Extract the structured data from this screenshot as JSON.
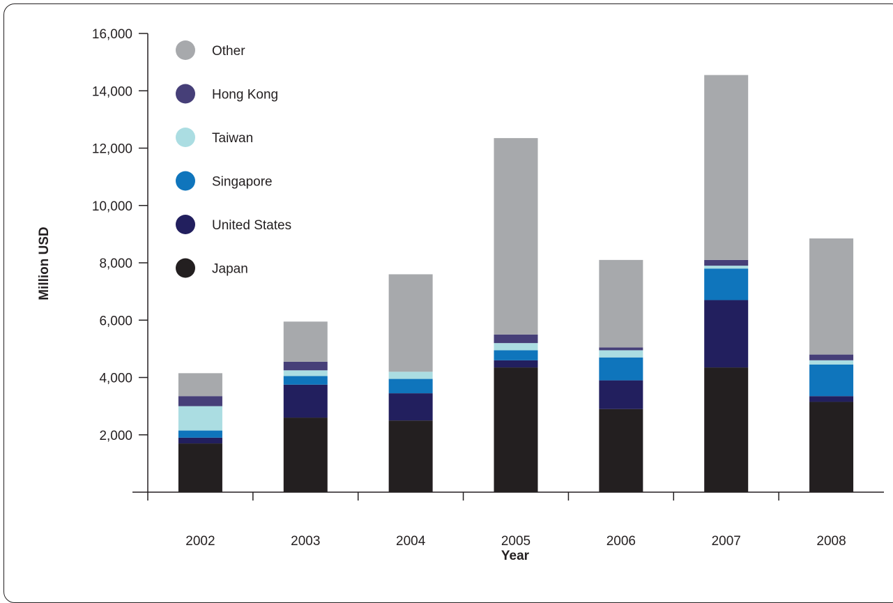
{
  "chart_data": {
    "type": "bar",
    "stacked": true,
    "categories": [
      "2002",
      "2003",
      "2004",
      "2005",
      "2006",
      "2007",
      "2008"
    ],
    "xlabel": "Year",
    "ylabel": "Million USD",
    "ylim": [
      0,
      16000
    ],
    "yticks": [
      2000,
      4000,
      6000,
      8000,
      10000,
      12000,
      14000,
      16000
    ],
    "ytick_labels": [
      "2,000",
      "4,000",
      "6,000",
      "8,000",
      "10,000",
      "12,000",
      "14,000",
      "16,000"
    ],
    "grid": false,
    "legend_position": "top-left",
    "series": [
      {
        "name": "Japan",
        "color": "#231f20",
        "values": [
          1700,
          2600,
          2500,
          4350,
          2900,
          4350,
          3150
        ]
      },
      {
        "name": "United States",
        "color": "#221f5e",
        "values": [
          200,
          1150,
          950,
          250,
          1000,
          2350,
          200
        ]
      },
      {
        "name": "Singapore",
        "color": "#0f75bc",
        "values": [
          250,
          300,
          500,
          350,
          800,
          1100,
          1100
        ]
      },
      {
        "name": "Taiwan",
        "color": "#abdde2",
        "values": [
          850,
          200,
          250,
          250,
          250,
          100,
          150
        ]
      },
      {
        "name": "Hong Kong",
        "color": "#463f78",
        "values": [
          350,
          300,
          0,
          300,
          100,
          200,
          200
        ]
      },
      {
        "name": "Other",
        "color": "#a7a9ac",
        "values": [
          800,
          1400,
          3400,
          6850,
          3050,
          6450,
          4050
        ]
      }
    ],
    "legend_order": [
      "Other",
      "Hong Kong",
      "Taiwan",
      "Singapore",
      "United States",
      "Japan"
    ]
  }
}
